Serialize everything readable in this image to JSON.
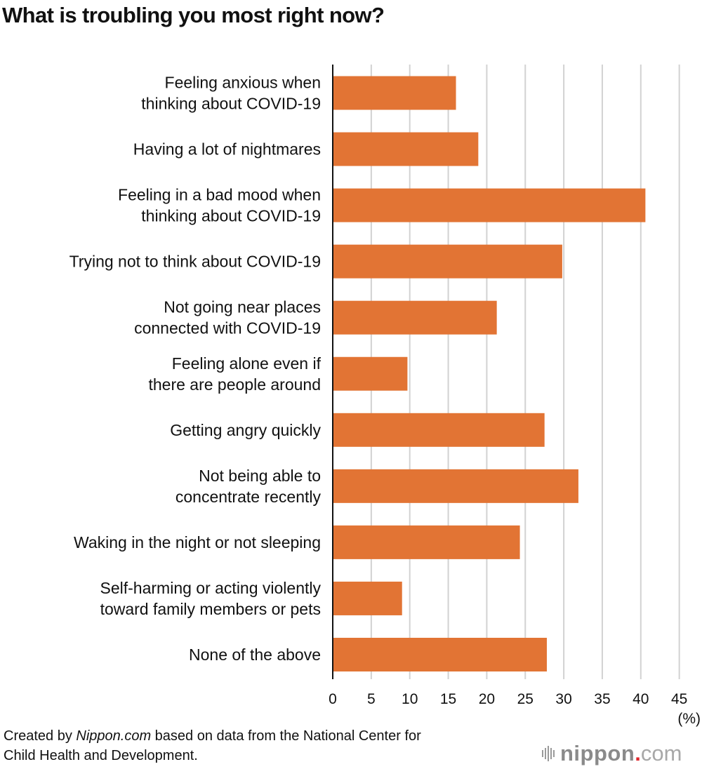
{
  "title": "What is troubling you most right now?",
  "footer": {
    "prefix": "Created by ",
    "source_italic": "Nippon.com",
    "suffix_line1": " based on data from the National Center for",
    "line2": "Child Health and Development."
  },
  "logo": {
    "name": "nippon",
    "dot": ".",
    "tld": "com",
    "icon": "sound-bars-icon"
  },
  "colors": {
    "bar": "#E27434",
    "grid": "#d2d2d2",
    "axis": "#111111",
    "logo_dot": "#e0262b"
  },
  "chart_data": {
    "type": "bar",
    "orientation": "horizontal",
    "title": "What is troubling you most right now?",
    "xlabel": "(%)",
    "ylabel": "",
    "xlim": [
      0,
      45
    ],
    "xticks": [
      0,
      5,
      10,
      15,
      20,
      25,
      30,
      35,
      40,
      45
    ],
    "grid": true,
    "categories": [
      [
        "Feeling anxious when",
        "thinking about COVID-19"
      ],
      [
        "Having a lot of nightmares"
      ],
      [
        "Feeling in a bad mood when",
        "thinking about COVID-19"
      ],
      [
        "Trying not to think about COVID-19"
      ],
      [
        "Not going near places",
        "connected with COVID-19"
      ],
      [
        "Feeling alone even if",
        "there are people around"
      ],
      [
        "Getting angry quickly"
      ],
      [
        "Not being able to",
        "concentrate recently"
      ],
      [
        "Waking in the night or not sleeping"
      ],
      [
        "Self-harming or acting violently",
        "toward family members or pets"
      ],
      [
        "None of the above"
      ]
    ],
    "values": [
      16.0,
      18.9,
      40.6,
      29.8,
      21.3,
      9.7,
      27.5,
      31.9,
      24.3,
      9.0,
      27.8
    ]
  }
}
